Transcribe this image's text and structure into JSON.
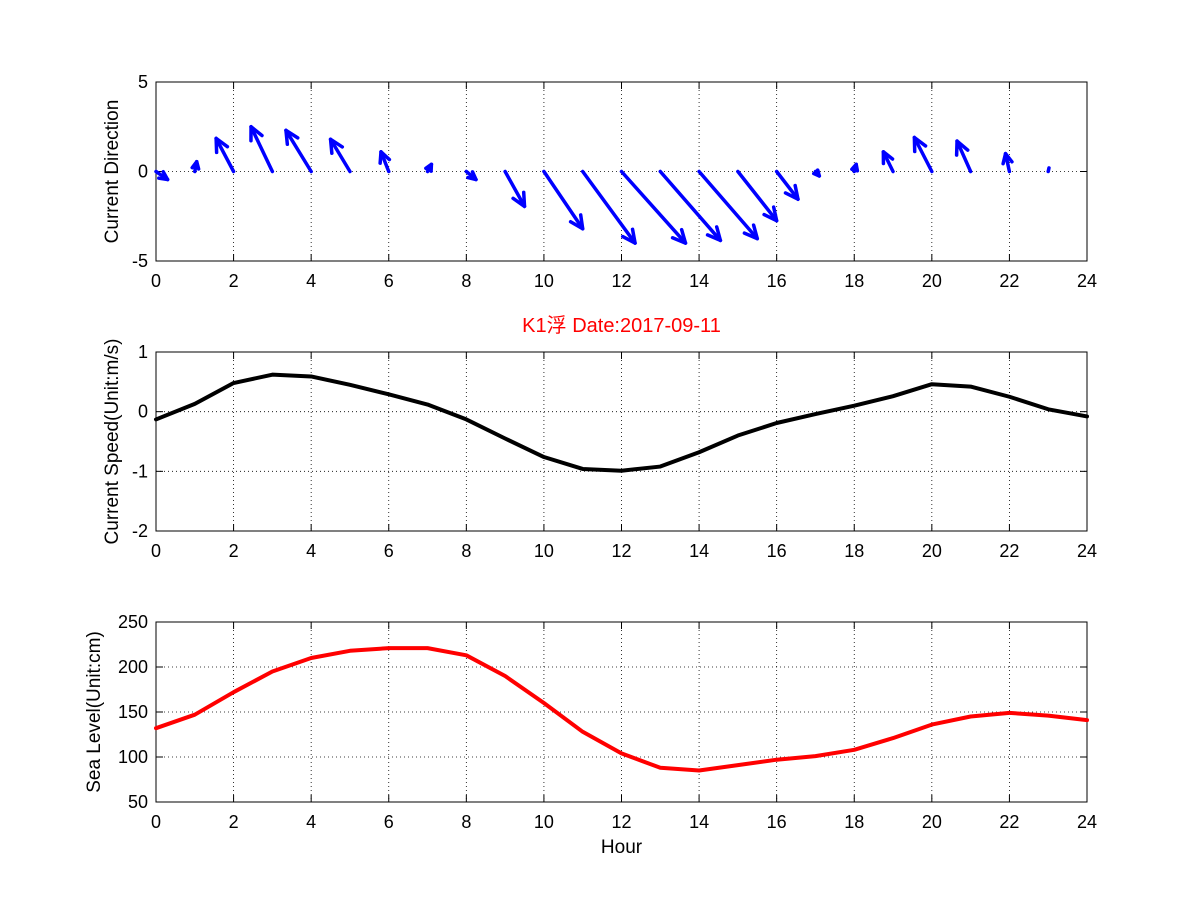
{
  "chart_data": [
    {
      "type": "quiver",
      "title": "",
      "xlabel": "",
      "ylabel": "Current Direction",
      "xlim": [
        0,
        24
      ],
      "ylim": [
        -5,
        5
      ],
      "xticks": [
        0,
        2,
        4,
        6,
        8,
        10,
        12,
        14,
        16,
        18,
        20,
        22,
        24
      ],
      "yticks": [
        -5,
        0,
        5
      ],
      "grid": true,
      "color": "#0000ff",
      "x": [
        0,
        1,
        2,
        3,
        4,
        5,
        6,
        7,
        8,
        9,
        10,
        11,
        12,
        13,
        14,
        15,
        16,
        17,
        18,
        19,
        20,
        21,
        22,
        23
      ],
      "u": [
        0.3,
        0.05,
        -0.45,
        -0.55,
        -0.65,
        -0.5,
        -0.2,
        0.1,
        0.25,
        0.5,
        1.0,
        1.35,
        1.65,
        1.55,
        1.5,
        1.0,
        0.55,
        0.1,
        0.05,
        -0.25,
        -0.45,
        -0.35,
        -0.1,
        0.02
      ],
      "v": [
        -0.45,
        0.55,
        1.85,
        2.5,
        2.3,
        1.8,
        1.1,
        0.4,
        -0.45,
        -1.95,
        -3.2,
        -4.0,
        -4.0,
        -3.85,
        -3.75,
        -2.75,
        -1.55,
        -0.25,
        0.4,
        1.1,
        1.9,
        1.7,
        1.0,
        0.2
      ]
    },
    {
      "type": "line",
      "title": "K1浮    Date:2017-09-11",
      "title_color": "#ff0000",
      "xlabel": "",
      "ylabel": "Current Speed(Unit:m/s)",
      "xlim": [
        0,
        24
      ],
      "ylim": [
        -2,
        1
      ],
      "xticks": [
        0,
        2,
        4,
        6,
        8,
        10,
        12,
        14,
        16,
        18,
        20,
        22,
        24
      ],
      "yticks": [
        -2,
        -1,
        0,
        1
      ],
      "grid": true,
      "color": "#000000",
      "x": [
        0,
        1,
        2,
        3,
        4,
        5,
        6,
        7,
        8,
        9,
        10,
        11,
        12,
        13,
        14,
        15,
        16,
        17,
        18,
        19,
        20,
        21,
        22,
        23,
        24
      ],
      "y": [
        -0.13,
        0.13,
        0.48,
        0.62,
        0.59,
        0.45,
        0.29,
        0.12,
        -0.13,
        -0.45,
        -0.76,
        -0.96,
        -0.99,
        -0.92,
        -0.68,
        -0.4,
        -0.19,
        -0.04,
        0.1,
        0.26,
        0.46,
        0.42,
        0.25,
        0.04,
        -0.08
      ]
    },
    {
      "type": "line",
      "title": "",
      "xlabel": "Hour",
      "ylabel": "Sea Level(Unit:cm)",
      "xlim": [
        0,
        24
      ],
      "ylim": [
        50,
        250
      ],
      "xticks": [
        0,
        2,
        4,
        6,
        8,
        10,
        12,
        14,
        16,
        18,
        20,
        22,
        24
      ],
      "yticks": [
        50,
        100,
        150,
        200,
        250
      ],
      "grid": true,
      "color": "#ff0000",
      "x": [
        0,
        1,
        2,
        3,
        4,
        5,
        6,
        7,
        8,
        9,
        10,
        11,
        12,
        13,
        14,
        15,
        16,
        17,
        18,
        19,
        20,
        21,
        22,
        23,
        24
      ],
      "y": [
        132,
        147,
        172,
        195,
        210,
        218,
        221,
        221,
        213,
        190,
        160,
        128,
        104,
        88,
        85,
        91,
        97,
        101,
        108,
        121,
        136,
        145,
        149,
        146,
        141
      ]
    }
  ]
}
